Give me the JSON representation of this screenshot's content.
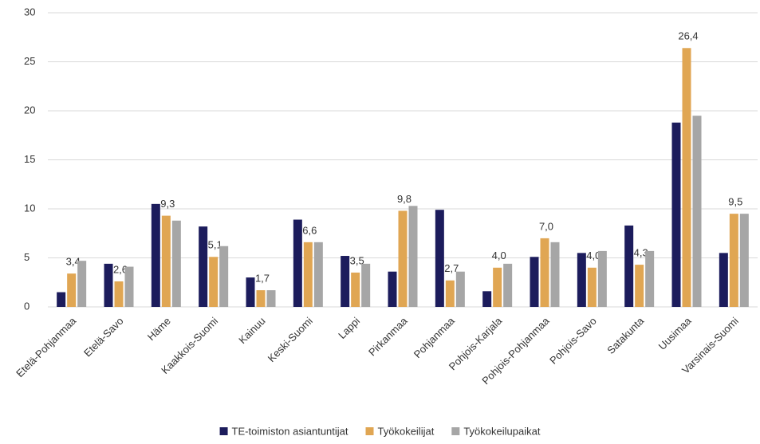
{
  "chart_data": {
    "type": "bar",
    "categories": [
      "Etelä-Pohjanmaa",
      "Etelä-Savo",
      "Häme",
      "Kaakkois-Suomi",
      "Kainuu",
      "Keski-Suomi",
      "Lappi",
      "Pirkanmaa",
      "Pohjanmaa",
      "Pohjois-Karjala",
      "Pohjois-Pohjanmaa",
      "Pohjois-Savo",
      "Satakunta",
      "Uusimaa",
      "Varsinais-Suomi"
    ],
    "series": [
      {
        "name": "TE-toimiston asiantuntijat",
        "color": "#1c1c5c",
        "values": [
          1.5,
          4.4,
          10.5,
          8.2,
          3.0,
          8.9,
          5.2,
          3.6,
          9.9,
          1.6,
          5.1,
          5.5,
          8.3,
          18.8,
          5.5
        ]
      },
      {
        "name": "Työkokeilijat",
        "color": "#e0a653",
        "values": [
          3.4,
          2.6,
          9.3,
          5.1,
          1.7,
          6.6,
          3.5,
          9.8,
          2.7,
          4.0,
          7.0,
          4.0,
          4.3,
          26.4,
          9.5
        ],
        "value_labels": [
          "3,4",
          "2,6",
          "9,3",
          "5,1",
          "1,7",
          "6,6",
          "3,5",
          "9,8",
          "2,7",
          "4,0",
          "7,0",
          "4,0",
          "4,3",
          "26,4",
          "9,5"
        ]
      },
      {
        "name": "Työkokeilupaikat",
        "color": "#a6a6a6",
        "values": [
          4.7,
          4.1,
          8.8,
          6.2,
          1.7,
          6.6,
          4.4,
          10.3,
          3.6,
          4.4,
          6.6,
          5.7,
          5.7,
          19.5,
          9.5
        ]
      }
    ],
    "ylim": [
      0,
      30
    ],
    "yticks": [
      0,
      5,
      10,
      15,
      20,
      25,
      30
    ],
    "grid": true,
    "legend": "bottom"
  }
}
